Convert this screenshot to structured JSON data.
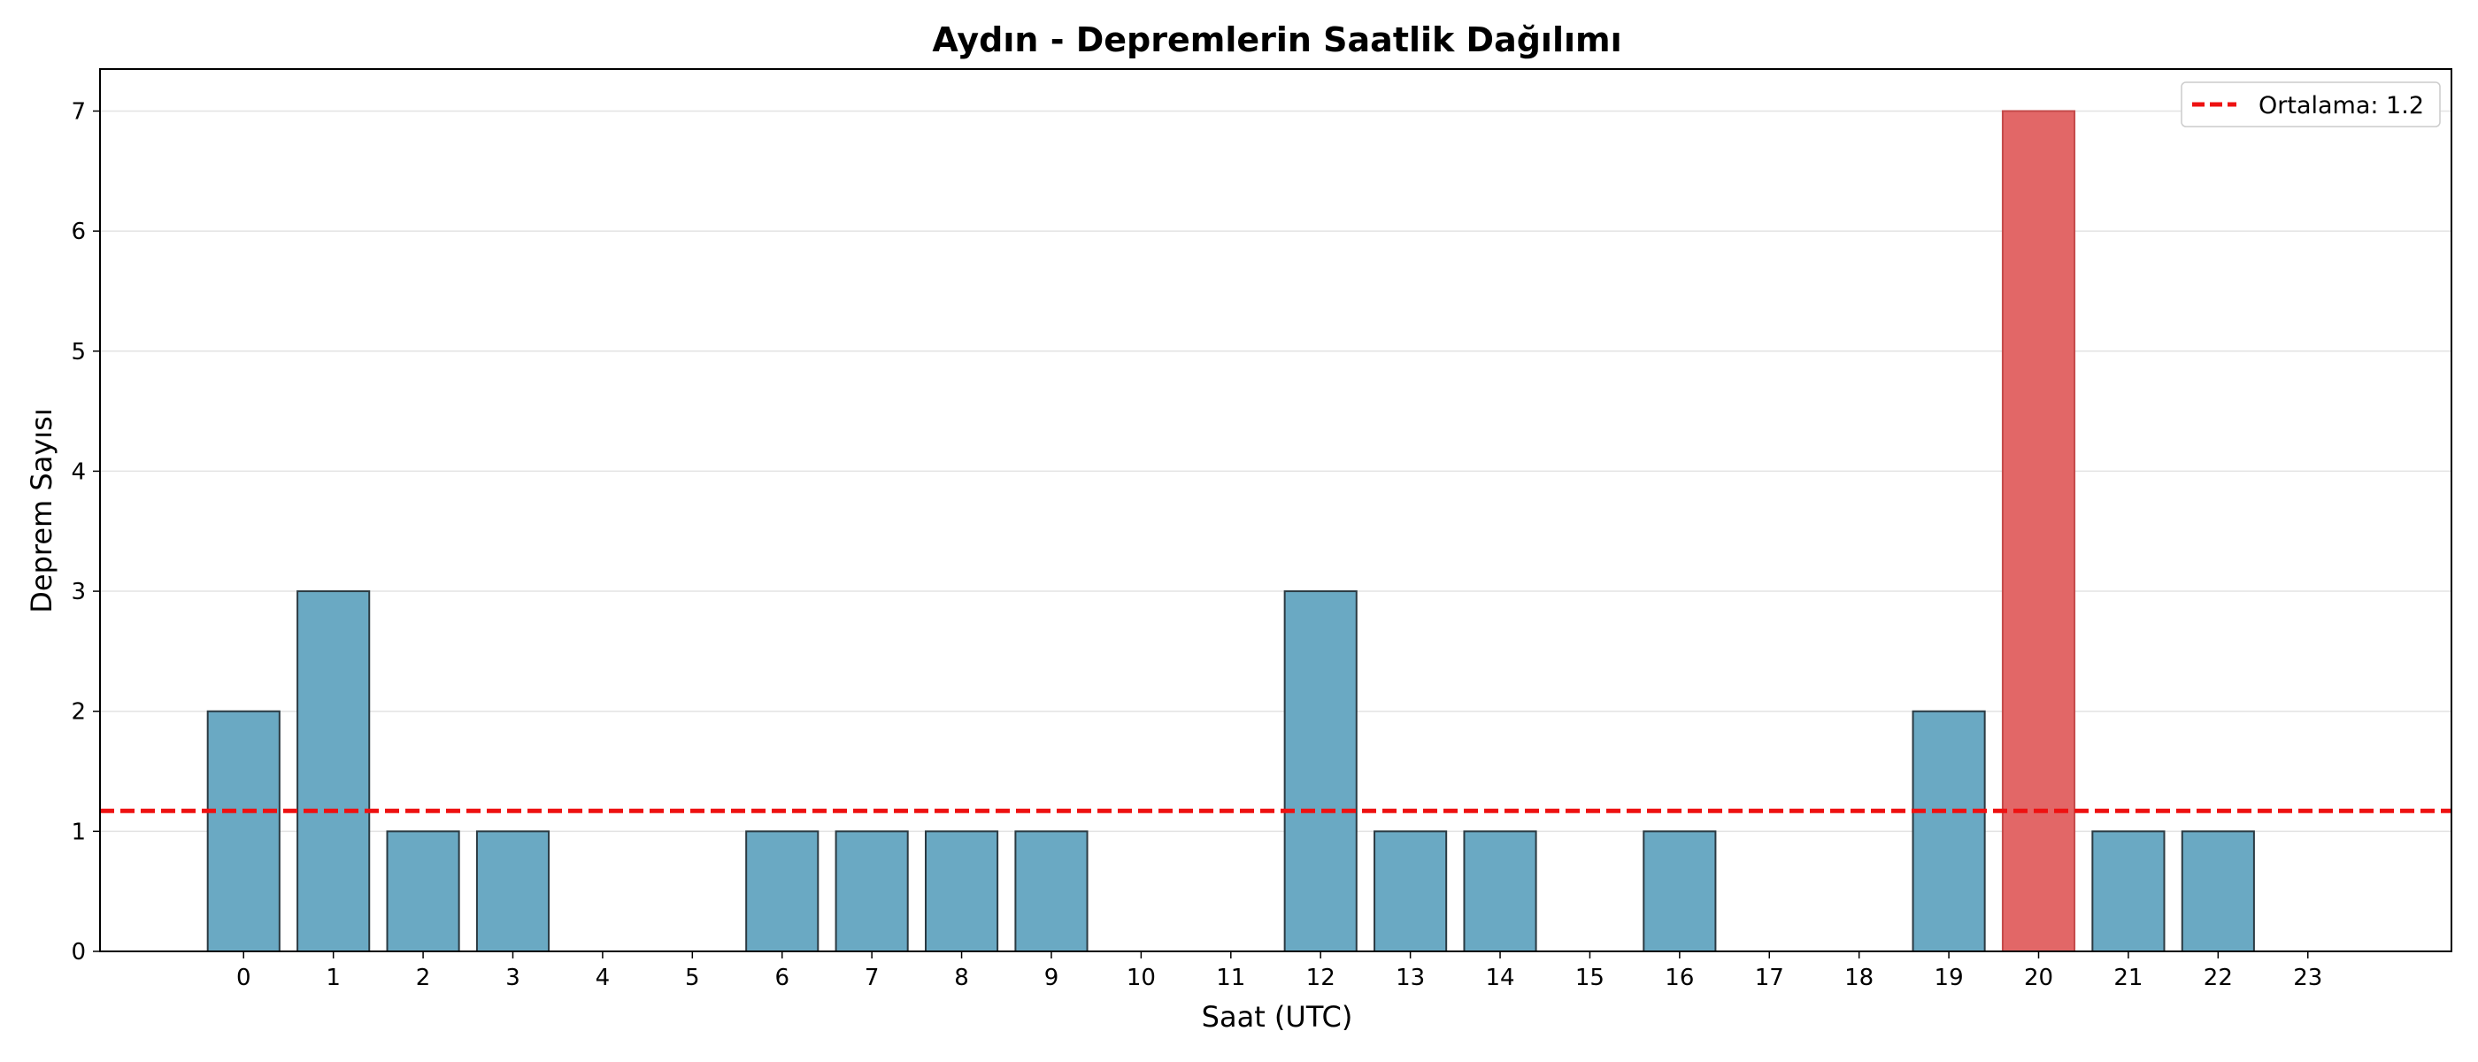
{
  "chart_data": {
    "type": "bar",
    "title": "Aydın - Depremlerin Saatlik Dağılımı",
    "xlabel": "Saat (UTC)",
    "ylabel": "Deprem Sayısı",
    "categories": [
      "0",
      "1",
      "2",
      "3",
      "4",
      "5",
      "6",
      "7",
      "8",
      "9",
      "10",
      "11",
      "12",
      "13",
      "14",
      "15",
      "16",
      "17",
      "18",
      "19",
      "20",
      "21",
      "22",
      "23"
    ],
    "values": [
      2,
      3,
      1,
      1,
      0,
      0,
      1,
      1,
      1,
      1,
      0,
      0,
      3,
      1,
      1,
      0,
      1,
      0,
      0,
      2,
      7,
      1,
      1,
      0
    ],
    "highlight_index": 20,
    "xlim": [
      -1.6,
      24.6
    ],
    "ylim": [
      0,
      7.35
    ],
    "yticks": [
      0,
      1,
      2,
      3,
      4,
      5,
      6,
      7
    ],
    "mean_line": {
      "value": 1.17,
      "label": "Ortalama: 1.2"
    },
    "grid": "y-axis, light",
    "legend_position": "top-right",
    "colors": {
      "bar": "#6aa9c3",
      "bar_edge": "#2b3a42",
      "highlight_bar": "#e26767",
      "highlight_edge": "#c44a4a",
      "mean_line": "#ee1111",
      "grid": "#e3e3e3"
    }
  }
}
